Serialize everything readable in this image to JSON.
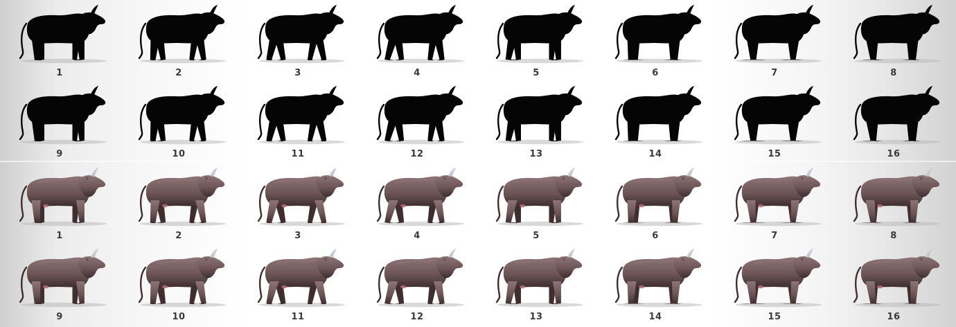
{
  "sheet": {
    "rows": [
      {
        "style": "silhouette",
        "frames": [
          "1",
          "2",
          "3",
          "4",
          "5",
          "6",
          "7",
          "8"
        ]
      },
      {
        "style": "silhouette",
        "frames": [
          "9",
          "10",
          "11",
          "12",
          "13",
          "14",
          "15",
          "16"
        ]
      },
      {
        "style": "color",
        "frames": [
          "1",
          "2",
          "3",
          "4",
          "5",
          "6",
          "7",
          "8"
        ]
      },
      {
        "style": "color",
        "frames": [
          "9",
          "10",
          "11",
          "12",
          "13",
          "14",
          "15",
          "16"
        ]
      }
    ],
    "colors": {
      "silhouette": "#050505",
      "body": "#6e5658",
      "body_light": "#8d7476",
      "body_dark": "#3e2e30",
      "horn": "#d8dde2",
      "shadow": "#b9b9b9",
      "label": "#3a3a3a"
    }
  }
}
